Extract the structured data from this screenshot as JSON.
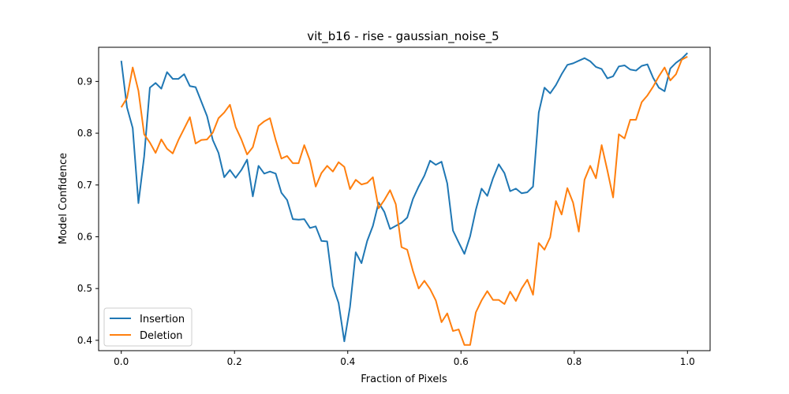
{
  "chart_data": {
    "type": "line",
    "title": "vit_b16 - rise - gaussian_noise_5",
    "xlabel": "Fraction of Pixels",
    "ylabel": "Model Confidence",
    "xlim": [
      -0.04,
      1.04
    ],
    "ylim": [
      0.38,
      0.966
    ],
    "xticks": [
      0.0,
      0.2,
      0.4,
      0.6,
      0.8,
      1.0
    ],
    "xtick_labels": [
      "0.0",
      "0.2",
      "0.4",
      "0.6",
      "0.8",
      "1.0"
    ],
    "yticks": [
      0.4,
      0.5,
      0.6,
      0.7,
      0.8,
      0.9
    ],
    "ytick_labels": [
      "0.4",
      "0.5",
      "0.6",
      "0.7",
      "0.8",
      "0.9"
    ],
    "grid": false,
    "legend_position": "lower-left",
    "series": [
      {
        "name": "Insertion",
        "color": "#1f77b4",
        "values": [
          0.94,
          0.85,
          0.81,
          0.665,
          0.755,
          0.888,
          0.897,
          0.886,
          0.918,
          0.905,
          0.905,
          0.914,
          0.891,
          0.889,
          0.861,
          0.833,
          0.787,
          0.762,
          0.715,
          0.729,
          0.714,
          0.729,
          0.749,
          0.678,
          0.737,
          0.722,
          0.726,
          0.722,
          0.685,
          0.671,
          0.634,
          0.633,
          0.634,
          0.617,
          0.62,
          0.592,
          0.591,
          0.505,
          0.472,
          0.398,
          0.465,
          0.57,
          0.549,
          0.592,
          0.621,
          0.666,
          0.648,
          0.615,
          0.621,
          0.627,
          0.637,
          0.673,
          0.697,
          0.718,
          0.747,
          0.739,
          0.745,
          0.703,
          0.612,
          0.589,
          0.567,
          0.601,
          0.652,
          0.693,
          0.679,
          0.713,
          0.74,
          0.723,
          0.688,
          0.693,
          0.684,
          0.686,
          0.697,
          0.84,
          0.888,
          0.877,
          0.893,
          0.914,
          0.932,
          0.935,
          0.94,
          0.945,
          0.939,
          0.928,
          0.924,
          0.906,
          0.91,
          0.929,
          0.931,
          0.923,
          0.921,
          0.93,
          0.933,
          0.907,
          0.888,
          0.881,
          0.925,
          0.936,
          0.944,
          0.955
        ]
      },
      {
        "name": "Deletion",
        "color": "#ff7f0e",
        "values": [
          0.85,
          0.868,
          0.927,
          0.882,
          0.798,
          0.782,
          0.762,
          0.788,
          0.77,
          0.761,
          0.787,
          0.809,
          0.831,
          0.78,
          0.787,
          0.788,
          0.801,
          0.829,
          0.84,
          0.855,
          0.812,
          0.788,
          0.759,
          0.773,
          0.814,
          0.823,
          0.829,
          0.787,
          0.751,
          0.756,
          0.742,
          0.742,
          0.777,
          0.747,
          0.697,
          0.723,
          0.737,
          0.726,
          0.744,
          0.735,
          0.692,
          0.71,
          0.701,
          0.704,
          0.715,
          0.655,
          0.671,
          0.69,
          0.663,
          0.58,
          0.575,
          0.534,
          0.5,
          0.515,
          0.499,
          0.477,
          0.435,
          0.452,
          0.418,
          0.421,
          0.391,
          0.391,
          0.454,
          0.477,
          0.495,
          0.478,
          0.478,
          0.47,
          0.494,
          0.476,
          0.5,
          0.517,
          0.488,
          0.588,
          0.575,
          0.599,
          0.669,
          0.643,
          0.694,
          0.666,
          0.61,
          0.71,
          0.737,
          0.713,
          0.777,
          0.728,
          0.676,
          0.798,
          0.79,
          0.826,
          0.826,
          0.86,
          0.873,
          0.89,
          0.91,
          0.927,
          0.902,
          0.914,
          0.942,
          0.948
        ]
      }
    ]
  }
}
